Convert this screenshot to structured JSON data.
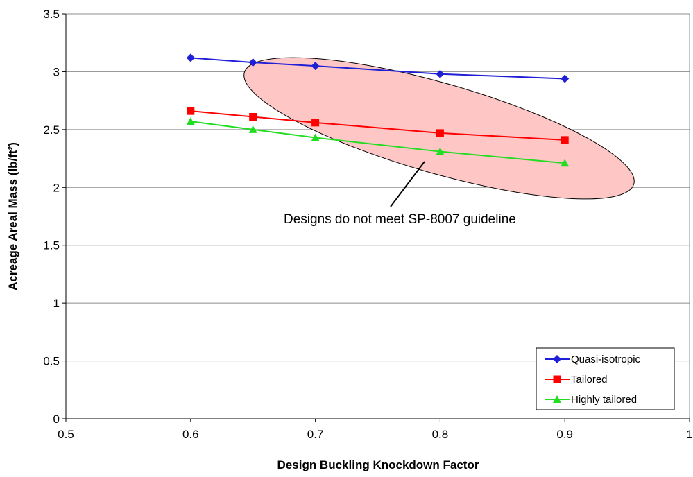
{
  "chart_data": {
    "type": "line",
    "xlabel": "Design Buckling Knockdown Factor",
    "ylabel": "Acreage Areal Mass (lb/ft²)",
    "xlim": [
      0.5,
      1.0
    ],
    "ylim": [
      0,
      3.5
    ],
    "x_ticks": [
      "0.5",
      "0.6",
      "0.7",
      "0.8",
      "0.9",
      "1"
    ],
    "y_ticks": [
      "0",
      "0.5",
      "1",
      "1.5",
      "2",
      "2.5",
      "3",
      "3.5"
    ],
    "grid": "horizontal",
    "legend_position": "bottom-right",
    "series": [
      {
        "name": "Quasi-isotropic",
        "color": "#1f1fd6",
        "marker": "diamond",
        "x": [
          0.6,
          0.65,
          0.7,
          0.8,
          0.9
        ],
        "y": [
          3.12,
          3.08,
          3.05,
          2.98,
          2.94
        ]
      },
      {
        "name": "Tailored",
        "color": "#ff0000",
        "marker": "square",
        "x": [
          0.6,
          0.65,
          0.7,
          0.8,
          0.9
        ],
        "y": [
          2.66,
          2.61,
          2.56,
          2.47,
          2.41
        ]
      },
      {
        "name": "Highly tailored",
        "color": "#22dd22",
        "marker": "triangle",
        "x": [
          0.6,
          0.65,
          0.7,
          0.8,
          0.9
        ],
        "y": [
          2.57,
          2.5,
          2.43,
          2.31,
          2.21
        ]
      }
    ],
    "annotation": {
      "text": "Designs do not meet SP-8007 guideline",
      "region_fill": "#ffc6c6",
      "region_stroke": "#000000"
    }
  }
}
